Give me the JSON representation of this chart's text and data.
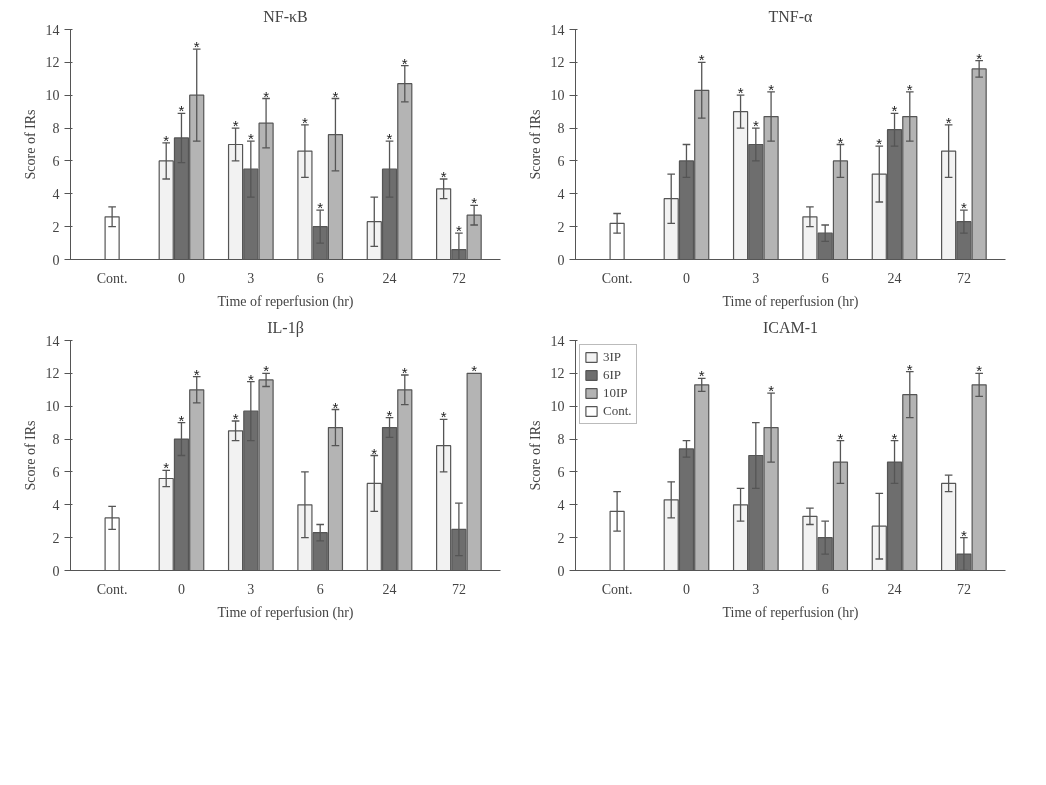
{
  "chart_data": [
    {
      "type": "bar",
      "title": "NF-κB",
      "xlabel": "Time of reperfusion (hr)",
      "ylabel": "Score of IRs",
      "categories": [
        "Cont.",
        "0",
        "3",
        "6",
        "24",
        "72"
      ],
      "ylim": [
        0,
        14
      ],
      "yticks": [
        0,
        2,
        4,
        6,
        8,
        10,
        12,
        14
      ],
      "legend": false,
      "series": [
        {
          "color": "#f2f2f2",
          "values": [
            null,
            6.0,
            7.0,
            6.6,
            2.3,
            4.3
          ],
          "errors": [
            null,
            1.1,
            1.0,
            1.6,
            1.5,
            0.6
          ],
          "value_labels": [
            null,
            "*",
            "*",
            "*",
            null,
            "*"
          ]
        },
        {
          "color": "#6e6e6e",
          "values": [
            null,
            7.4,
            5.5,
            2.0,
            5.5,
            0.6
          ],
          "errors": [
            null,
            1.5,
            1.7,
            1.0,
            1.7,
            1.0
          ],
          "value_labels": [
            null,
            "*",
            "*",
            "*",
            "*",
            "*"
          ]
        },
        {
          "color": "#b4b4b4",
          "values": [
            null,
            10.0,
            8.3,
            7.6,
            10.7,
            2.7
          ],
          "errors": [
            null,
            2.8,
            1.5,
            2.2,
            1.1,
            0.6
          ],
          "value_labels": [
            null,
            "*",
            "*",
            "*",
            "*",
            "*"
          ]
        },
        {
          "color": "#ffffff",
          "values": [
            2.6,
            null,
            null,
            null,
            null,
            null
          ],
          "errors": [
            0.6,
            null,
            null,
            null,
            null,
            null
          ]
        }
      ]
    },
    {
      "type": "bar",
      "title": "TNF-α",
      "xlabel": "Time of reperfusion (hr)",
      "ylabel": "Score of IRs",
      "categories": [
        "Cont.",
        "0",
        "3",
        "6",
        "24",
        "72"
      ],
      "ylim": [
        0,
        14
      ],
      "yticks": [
        0,
        2,
        4,
        6,
        8,
        10,
        12,
        14
      ],
      "legend": false,
      "series": [
        {
          "color": "#f2f2f2",
          "values": [
            null,
            3.7,
            9.0,
            2.6,
            5.2,
            6.6
          ],
          "errors": [
            null,
            1.5,
            1.0,
            0.6,
            1.7,
            1.6
          ],
          "value_labels": [
            null,
            null,
            "*",
            null,
            "*",
            "*"
          ]
        },
        {
          "color": "#6e6e6e",
          "values": [
            null,
            6.0,
            7.0,
            1.6,
            7.9,
            2.3
          ],
          "errors": [
            null,
            1.0,
            1.0,
            0.5,
            1.0,
            0.7
          ],
          "value_labels": [
            null,
            null,
            "*",
            null,
            "*",
            "*"
          ]
        },
        {
          "color": "#b4b4b4",
          "values": [
            null,
            10.3,
            8.7,
            6.0,
            8.7,
            11.6
          ],
          "errors": [
            null,
            1.7,
            1.5,
            1.0,
            1.5,
            0.5
          ],
          "value_labels": [
            null,
            "*",
            "*",
            "*",
            "*",
            "*"
          ]
        },
        {
          "color": "#ffffff",
          "values": [
            2.2,
            null,
            null,
            null,
            null,
            null
          ],
          "errors": [
            0.6,
            null,
            null,
            null,
            null,
            null
          ]
        }
      ]
    },
    {
      "type": "bar",
      "title": "IL-1β",
      "xlabel": "Time of reperfusion (hr)",
      "ylabel": "Score of IRs",
      "categories": [
        "Cont.",
        "0",
        "3",
        "6",
        "24",
        "72"
      ],
      "ylim": [
        0,
        14
      ],
      "yticks": [
        0,
        2,
        4,
        6,
        8,
        10,
        12,
        14
      ],
      "legend": false,
      "series": [
        {
          "color": "#f2f2f2",
          "values": [
            null,
            5.6,
            8.5,
            4.0,
            5.3,
            7.6
          ],
          "errors": [
            null,
            0.5,
            0.6,
            2.0,
            1.7,
            1.6
          ],
          "value_labels": [
            null,
            "*",
            "*",
            null,
            "*",
            "*"
          ]
        },
        {
          "color": "#6e6e6e",
          "values": [
            null,
            8.0,
            9.7,
            2.3,
            8.7,
            2.5
          ],
          "errors": [
            null,
            1.0,
            1.8,
            0.5,
            0.6,
            1.6
          ],
          "value_labels": [
            null,
            "*",
            "*",
            null,
            "*",
            null
          ]
        },
        {
          "color": "#b4b4b4",
          "values": [
            null,
            11.0,
            11.6,
            8.7,
            11.0,
            12.0
          ],
          "errors": [
            null,
            0.8,
            0.4,
            1.1,
            0.9,
            null
          ],
          "value_labels": [
            null,
            "*",
            "*",
            "*",
            "*",
            "*"
          ]
        },
        {
          "color": "#ffffff",
          "values": [
            3.2,
            null,
            null,
            null,
            null,
            null
          ],
          "errors": [
            0.7,
            null,
            null,
            null,
            null,
            null
          ]
        }
      ]
    },
    {
      "type": "bar",
      "title": "ICAM-1",
      "xlabel": "Time of reperfusion (hr)",
      "ylabel": "Score of IRs",
      "categories": [
        "Cont.",
        "0",
        "3",
        "6",
        "24",
        "72"
      ],
      "ylim": [
        0,
        14
      ],
      "yticks": [
        0,
        2,
        4,
        6,
        8,
        10,
        12,
        14
      ],
      "legend": "top left",
      "series": [
        {
          "name": "3IP",
          "color": "#f2f2f2",
          "values": [
            null,
            4.3,
            4.0,
            3.3,
            2.7,
            5.3
          ],
          "errors": [
            null,
            1.1,
            1.0,
            0.5,
            2.0,
            0.5
          ]
        },
        {
          "name": "6IP",
          "color": "#6e6e6e",
          "values": [
            null,
            7.4,
            7.0,
            2.0,
            6.6,
            1.0
          ],
          "errors": [
            null,
            0.5,
            2.0,
            1.0,
            1.3,
            1.0
          ],
          "value_labels": [
            null,
            null,
            null,
            null,
            "*",
            "*"
          ]
        },
        {
          "name": "10IP",
          "color": "#b4b4b4",
          "values": [
            null,
            11.3,
            8.7,
            6.6,
            10.7,
            11.3
          ],
          "errors": [
            null,
            0.4,
            2.1,
            1.3,
            1.4,
            0.7
          ],
          "value_labels": [
            null,
            "*",
            "*",
            "*",
            "*",
            "*"
          ]
        },
        {
          "name": "Cont.",
          "color": "#ffffff",
          "values": [
            3.6,
            null,
            null,
            null,
            null,
            null
          ],
          "errors": [
            1.2,
            null,
            null,
            null,
            null,
            null
          ]
        }
      ]
    }
  ]
}
